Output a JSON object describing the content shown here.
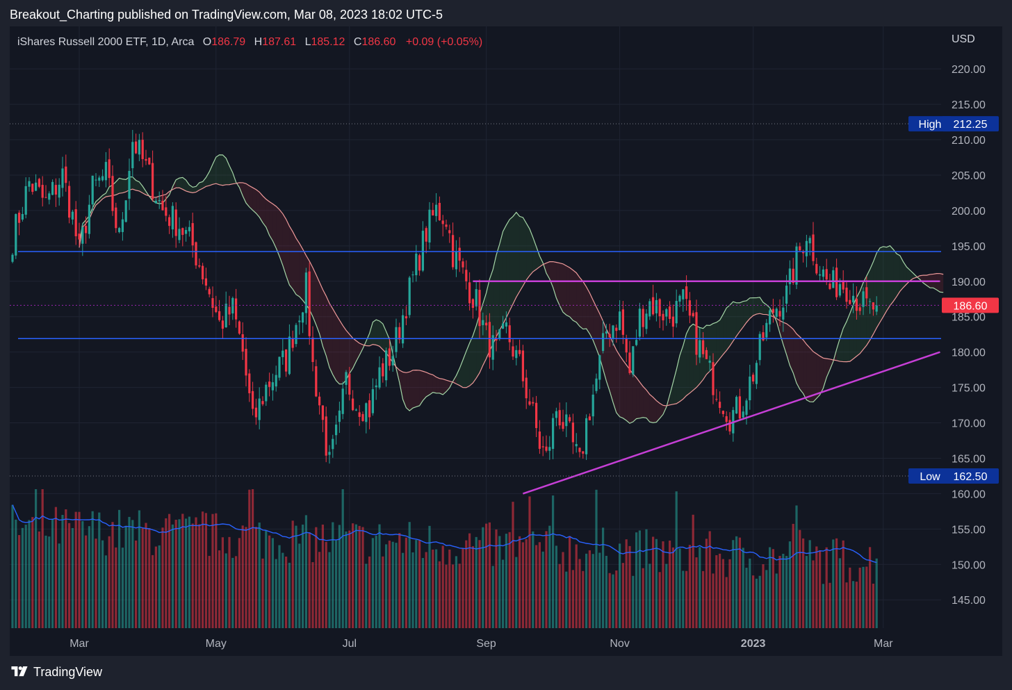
{
  "header": {
    "publisher_line": "Breakout_Charting published on TradingView.com, Mar 08, 2023 18:02 UTC-5"
  },
  "footer": {
    "brand": "TradingView"
  },
  "colors": {
    "up": "#26a69a",
    "down": "#f23645",
    "trendline": "#c63fd6",
    "level": "#2962ff",
    "cloud_bull": "#a5d6a7",
    "cloud_bear": "#ef9a9a"
  },
  "chart_data": {
    "type": "candlestick",
    "legend": {
      "symbol": "iShares Russell 2000 ETF, 1D, Arca",
      "o_label": "O",
      "o": "186.79",
      "h_label": "H",
      "h": "187.61",
      "l_label": "L",
      "l": "185.12",
      "c_label": "C",
      "c": "186.60",
      "change": "+0.09 (+0.05%)"
    },
    "currency": "USD",
    "y_range": [
      141,
      226
    ],
    "y_ticks": [
      "220.00",
      "215.00",
      "210.00",
      "205.00",
      "200.00",
      "195.00",
      "190.00",
      "185.00",
      "180.00",
      "175.00",
      "170.00",
      "165.00",
      "160.00",
      "155.00",
      "150.00",
      "145.00"
    ],
    "x_ticks": [
      {
        "label": "Mar",
        "bold": false,
        "index": 20
      },
      {
        "label": "May",
        "bold": false,
        "index": 61
      },
      {
        "label": "Jul",
        "bold": false,
        "index": 101
      },
      {
        "label": "Sep",
        "bold": false,
        "index": 142
      },
      {
        "label": "Nov",
        "bold": false,
        "index": 182
      },
      {
        "label": "2023",
        "bold": true,
        "index": 222
      },
      {
        "label": "Mar",
        "bold": false,
        "index": 261
      }
    ],
    "last_price": "186.60",
    "high": {
      "label": "High",
      "value": "212.25"
    },
    "low": {
      "label": "Low",
      "value": "162.50"
    },
    "horizontal_levels": [
      194.2,
      181.9
    ],
    "resistance_line": {
      "start_index": 138,
      "end_index": 278,
      "price": 190.0
    },
    "trendline": [
      {
        "index": 153,
        "price": 160.0
      },
      {
        "index": 278,
        "price": 180.0
      }
    ],
    "price_path": [
      [
        0,
        196
      ],
      [
        5,
        204
      ],
      [
        10,
        201
      ],
      [
        15,
        205
      ],
      [
        18,
        199
      ],
      [
        20,
        194
      ],
      [
        24,
        203
      ],
      [
        28,
        205
      ],
      [
        32,
        196
      ],
      [
        36,
        210
      ],
      [
        40,
        206
      ],
      [
        45,
        200
      ],
      [
        50,
        198
      ],
      [
        54,
        195
      ],
      [
        58,
        190
      ],
      [
        62,
        184
      ],
      [
        66,
        186
      ],
      [
        69,
        180
      ],
      [
        72,
        170
      ],
      [
        76,
        175
      ],
      [
        80,
        178
      ],
      [
        82,
        179
      ],
      [
        86,
        186
      ],
      [
        88,
        189
      ],
      [
        90,
        178
      ],
      [
        93,
        170
      ],
      [
        95,
        164
      ],
      [
        98,
        170
      ],
      [
        100,
        176
      ],
      [
        103,
        173
      ],
      [
        107,
        172
      ],
      [
        110,
        177
      ],
      [
        114,
        180
      ],
      [
        118,
        187
      ],
      [
        124,
        197
      ],
      [
        127,
        200
      ],
      [
        130,
        199
      ],
      [
        132,
        194
      ],
      [
        136,
        190
      ],
      [
        139,
        187
      ],
      [
        142,
        182
      ],
      [
        145,
        180
      ],
      [
        148,
        183
      ],
      [
        152,
        178
      ],
      [
        155,
        173
      ],
      [
        158,
        167
      ],
      [
        160,
        165
      ],
      [
        163,
        172
      ],
      [
        167,
        168
      ],
      [
        170,
        164
      ],
      [
        172,
        170
      ],
      [
        175,
        176
      ],
      [
        178,
        183
      ],
      [
        182,
        185
      ],
      [
        185,
        177
      ],
      [
        188,
        185
      ],
      [
        191,
        187
      ],
      [
        194,
        186
      ],
      [
        197,
        185
      ],
      [
        201,
        187
      ],
      [
        204,
        183
      ],
      [
        208,
        178
      ],
      [
        212,
        174
      ],
      [
        215,
        171
      ],
      [
        218,
        172
      ],
      [
        222,
        177
      ],
      [
        225,
        182
      ],
      [
        228,
        186
      ],
      [
        232,
        188
      ],
      [
        235,
        193
      ],
      [
        238,
        197
      ],
      [
        241,
        193
      ],
      [
        245,
        189
      ],
      [
        248,
        190
      ],
      [
        251,
        189
      ],
      [
        254,
        187
      ],
      [
        257,
        186
      ],
      [
        259,
        186.6
      ]
    ],
    "volume_scale_max": 1.0
  }
}
